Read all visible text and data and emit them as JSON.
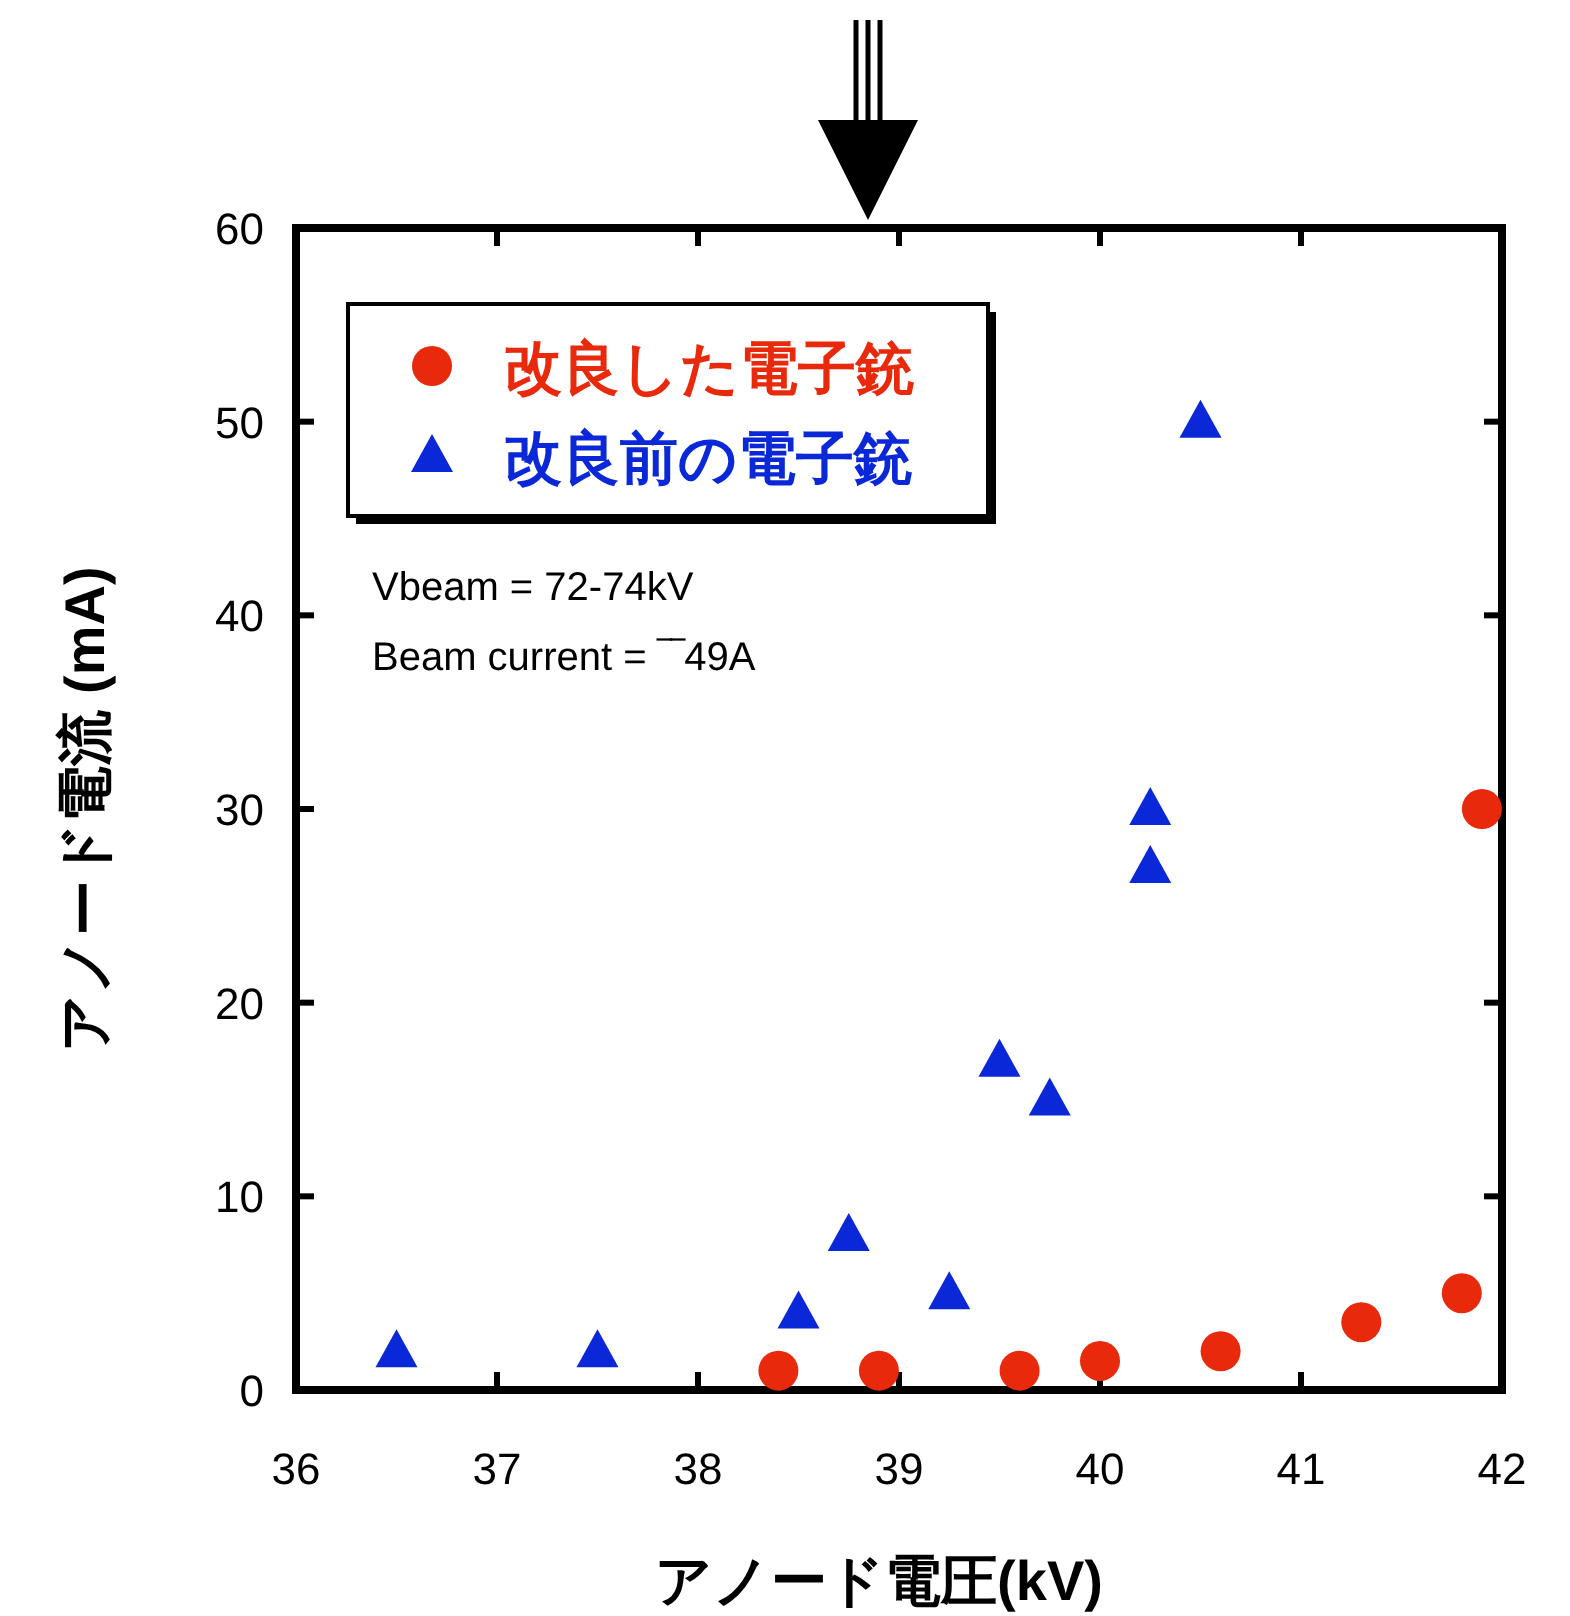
{
  "chart_data": {
    "type": "scatter",
    "xlabel": "アノード電圧(kV)",
    "ylabel": "アノード電流 (mA)",
    "xlim": [
      36,
      42
    ],
    "xticks": [
      36,
      37,
      38,
      39,
      40,
      41,
      42
    ],
    "ylim": [
      0,
      60
    ],
    "yticks": [
      0,
      10,
      20,
      30,
      40,
      50,
      60
    ],
    "grid": false,
    "legend": "top left",
    "annotations": [
      "Vbeam = 72-74kV",
      "Beam current = ‾‾49A"
    ],
    "series": [
      {
        "name": "改良した電子銃",
        "color": "#e8290b",
        "marker": "circle",
        "x": [
          38.4,
          38.9,
          39.6,
          40.0,
          40.6,
          41.3,
          41.8,
          41.9
        ],
        "values": [
          1,
          1,
          1,
          1.5,
          2,
          3.5,
          5,
          30
        ]
      },
      {
        "name": "改良前の電子銃",
        "color": "#0a28d8",
        "marker": "triangle",
        "x": [
          36.5,
          37.5,
          38.5,
          38.75,
          39.25,
          39.5,
          39.75,
          40.25,
          40.25,
          40.5
        ],
        "values": [
          2,
          2,
          4,
          8,
          5,
          17,
          15,
          30,
          27,
          50
        ]
      }
    ]
  }
}
